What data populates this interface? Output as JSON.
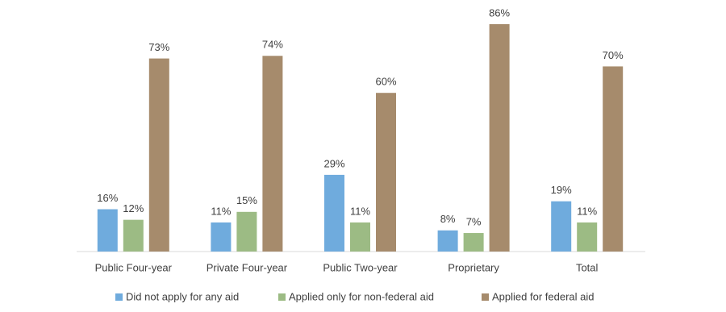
{
  "chart_data": {
    "type": "bar",
    "categories": [
      "Public Four-year",
      "Private Four-year",
      "Public Two-year",
      "Proprietary",
      "Total"
    ],
    "series": [
      {
        "name": "Did not apply for any aid",
        "color": "#6fabdd",
        "values": [
          16,
          11,
          29,
          8,
          19
        ],
        "value_labels": [
          "16%",
          "11%",
          "29%",
          "8%",
          "19%"
        ]
      },
      {
        "name": "Applied only for non-federal aid",
        "color": "#9cbb84",
        "values": [
          12,
          15,
          11,
          7,
          11
        ],
        "value_labels": [
          "12%",
          "15%",
          "11%",
          "7%",
          "11%"
        ]
      },
      {
        "name": "Applied for federal aid",
        "color": "#a68b6c",
        "values": [
          73,
          74,
          60,
          86,
          70
        ],
        "value_labels": [
          "73%",
          "74%",
          "60%",
          "86%",
          "70%"
        ]
      }
    ],
    "legend": "bottom"
  }
}
